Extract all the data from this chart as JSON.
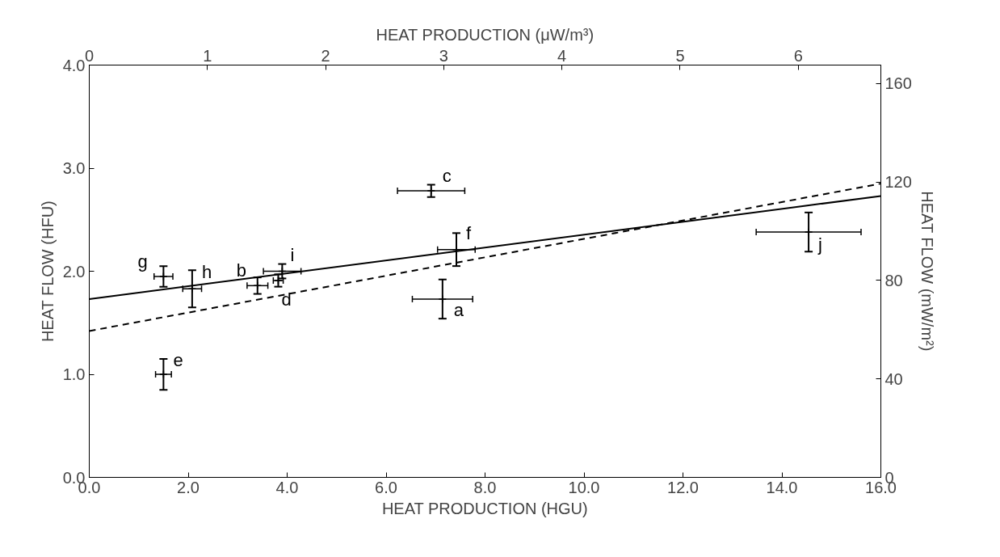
{
  "chart_data": {
    "type": "scatter",
    "xlabel": "HEAT PRODUCTION (HGU)",
    "ylabel": "HEAT FLOW (HFU)",
    "x2label": "HEAT PRODUCTION (μW/m³)",
    "y2label": "HEAT FLOW (mW/m²)",
    "xlim": [
      0,
      16
    ],
    "ylim": [
      0,
      4
    ],
    "x2lim": [
      0,
      6.699
    ],
    "y2lim": [
      0,
      167.5
    ],
    "xticks": [
      {
        "value": 0,
        "label": "0.0"
      },
      {
        "value": 2,
        "label": "2.0"
      },
      {
        "value": 4,
        "label": "4.0"
      },
      {
        "value": 6,
        "label": "6.0"
      },
      {
        "value": 8,
        "label": "8.0"
      },
      {
        "value": 10,
        "label": "10.0"
      },
      {
        "value": 12,
        "label": "12.0"
      },
      {
        "value": 14,
        "label": "14.0"
      },
      {
        "value": 16,
        "label": "16.0"
      }
    ],
    "yticks": [
      {
        "value": 0,
        "label": "0.0"
      },
      {
        "value": 1,
        "label": "1.0"
      },
      {
        "value": 2,
        "label": "2.0"
      },
      {
        "value": 3,
        "label": "3.0"
      },
      {
        "value": 4,
        "label": "4.0"
      }
    ],
    "x2ticks": [
      0,
      1,
      2,
      3,
      4,
      5,
      6
    ],
    "y2ticks": [
      0,
      40,
      80,
      120,
      160
    ],
    "grid": false,
    "series": [
      {
        "color": "#000000",
        "marker": "cross",
        "x": [
          7.14,
          3.4,
          6.91,
          3.82,
          1.5,
          7.42,
          1.5,
          2.08,
          3.9,
          14.54
        ],
        "values": [
          1.73,
          1.86,
          2.78,
          1.91,
          1.0,
          2.21,
          1.95,
          1.83,
          2.0,
          2.38
        ],
        "errors": [
          0.19,
          0.08,
          0.06,
          0.06,
          0.15,
          0.16,
          0.1,
          0.18,
          0.07,
          0.19
        ],
        "xerrors": [
          0.61,
          0.21,
          0.68,
          0.1,
          0.16,
          0.38,
          0.19,
          0.19,
          0.38,
          1.06
        ]
      },
      {
        "type": "line",
        "color": "#000000",
        "line_style": "solid",
        "x": [
          0,
          16
        ],
        "values": [
          1.73,
          2.73
        ]
      },
      {
        "type": "line",
        "color": "#000000",
        "line_style": "dashed",
        "x": [
          0,
          16
        ],
        "values": [
          1.42,
          2.85
        ]
      }
    ],
    "annotations": [
      {
        "text": "a",
        "x": 7.14,
        "y": 1.73
      },
      {
        "text": "b",
        "x": 3.4,
        "y": 1.86
      },
      {
        "text": "c",
        "x": 6.91,
        "y": 2.78
      },
      {
        "text": "d",
        "x": 3.82,
        "y": 1.91
      },
      {
        "text": "e",
        "x": 1.5,
        "y": 1.0
      },
      {
        "text": "f",
        "x": 7.42,
        "y": 2.21
      },
      {
        "text": "g",
        "x": 1.5,
        "y": 1.95
      },
      {
        "text": "h",
        "x": 2.08,
        "y": 1.83
      },
      {
        "text": "i",
        "x": 3.9,
        "y": 2.0
      },
      {
        "text": "j",
        "x": 14.54,
        "y": 2.38
      }
    ]
  }
}
